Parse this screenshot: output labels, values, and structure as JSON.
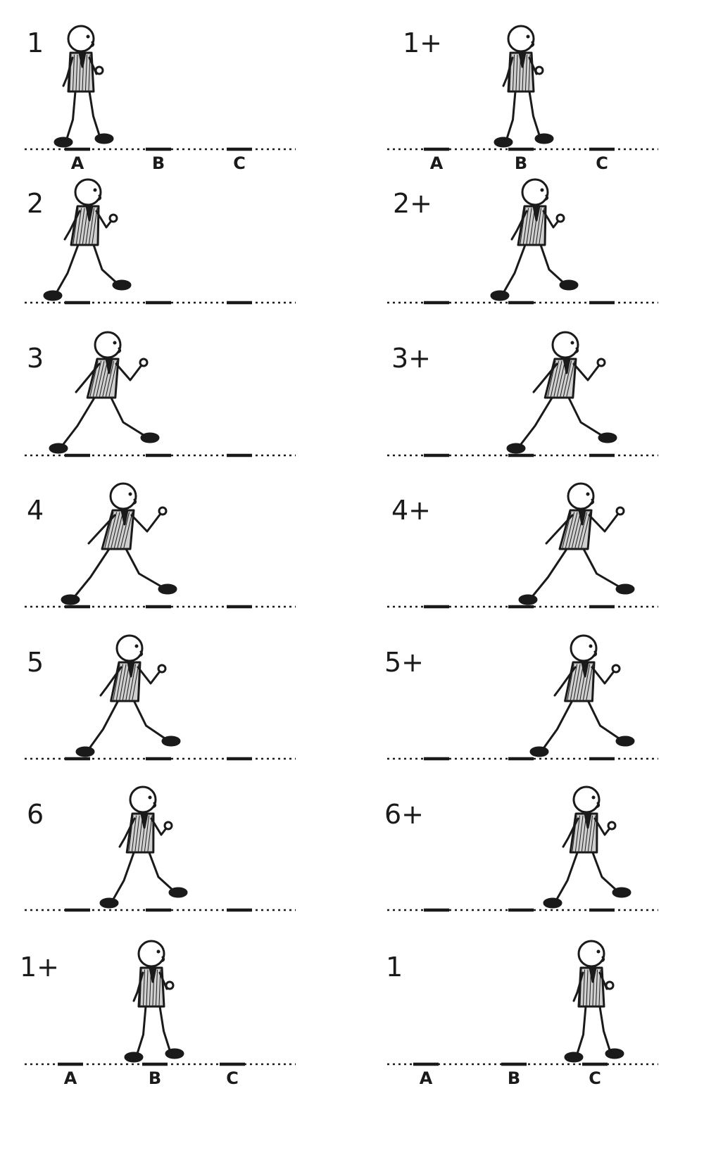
{
  "frames": [
    {
      "number": "1",
      "marks": [
        "A",
        "B",
        "C"
      ],
      "step": 0
    },
    {
      "number": "1+",
      "marks": [
        "A",
        "B",
        "C"
      ],
      "step": 0
    },
    {
      "number": "2",
      "marks": [],
      "step": 1
    },
    {
      "number": "2+",
      "marks": [],
      "step": 1
    },
    {
      "number": "3",
      "marks": [],
      "step": 2
    },
    {
      "number": "3+",
      "marks": [],
      "step": 2
    },
    {
      "number": "4",
      "marks": [],
      "step": 3
    },
    {
      "number": "4+",
      "marks": [],
      "step": 3
    },
    {
      "number": "5",
      "marks": [],
      "step": 4
    },
    {
      "number": "5+",
      "marks": [],
      "step": 4
    },
    {
      "number": "6",
      "marks": [],
      "step": 5
    },
    {
      "number": "6+",
      "marks": [],
      "step": 5
    },
    {
      "number": "1+",
      "marks": [
        "A",
        "B",
        "C"
      ],
      "step": 6
    },
    {
      "number": "1",
      "marks": [
        "A",
        "B",
        "C"
      ],
      "step": 6
    }
  ],
  "colors": {
    "ink": "#1a1a1a",
    "paper": "#ffffff"
  }
}
